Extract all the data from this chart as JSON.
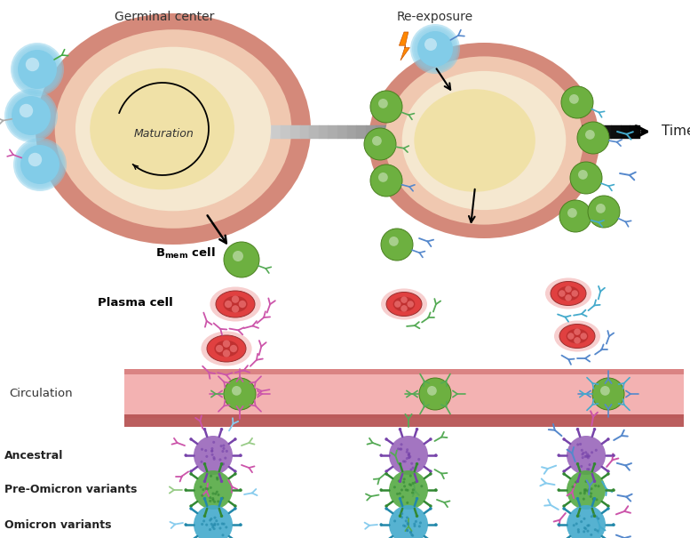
{
  "germinal_center_label": "Germinal center",
  "re_exposure_label": "Re-exposure",
  "time_label": "Time",
  "maturation_label": "Maturation",
  "plasma_label": "Plasma cell",
  "circulation_label": "Circulation",
  "ancestral_label": "Ancestral",
  "pre_omicron_label": "Pre-Omicron variants",
  "omicron_label": "Omicron variants",
  "colors": {
    "bg": "#ffffff",
    "gc_outer_ring": "#d4897a",
    "gc_mid": "#f0c8b0",
    "gc_light": "#f5e8d0",
    "gc_yellow": "#f0e0a0",
    "b_cell_blue": "#82cce8",
    "bmem_green": "#6db040",
    "plasma_red": "#e04040",
    "plasma_dark": "#c03030",
    "plasma_core": "#aa2020",
    "ab_pink": "#cc55aa",
    "ab_blue": "#5588cc",
    "ab_green": "#55aa55",
    "ab_teal": "#44aacc",
    "ab_lightblue": "#88ccee",
    "ab_lightgreen": "#99cc88",
    "ab_gray": "#aaaaaa",
    "virus_purple": "#9966bb",
    "virus_purple_spike": "#7744aa",
    "virus_green": "#55aa44",
    "virus_green_spike": "#338833",
    "virus_teal": "#44aacc",
    "virus_teal_spike": "#2288aa",
    "circ_bg": "#f2aaaa",
    "circ_border_top": "#d47878",
    "circ_border_bot": "#b85555",
    "arrow_black": "#111111",
    "lightning": "#ff8800"
  }
}
